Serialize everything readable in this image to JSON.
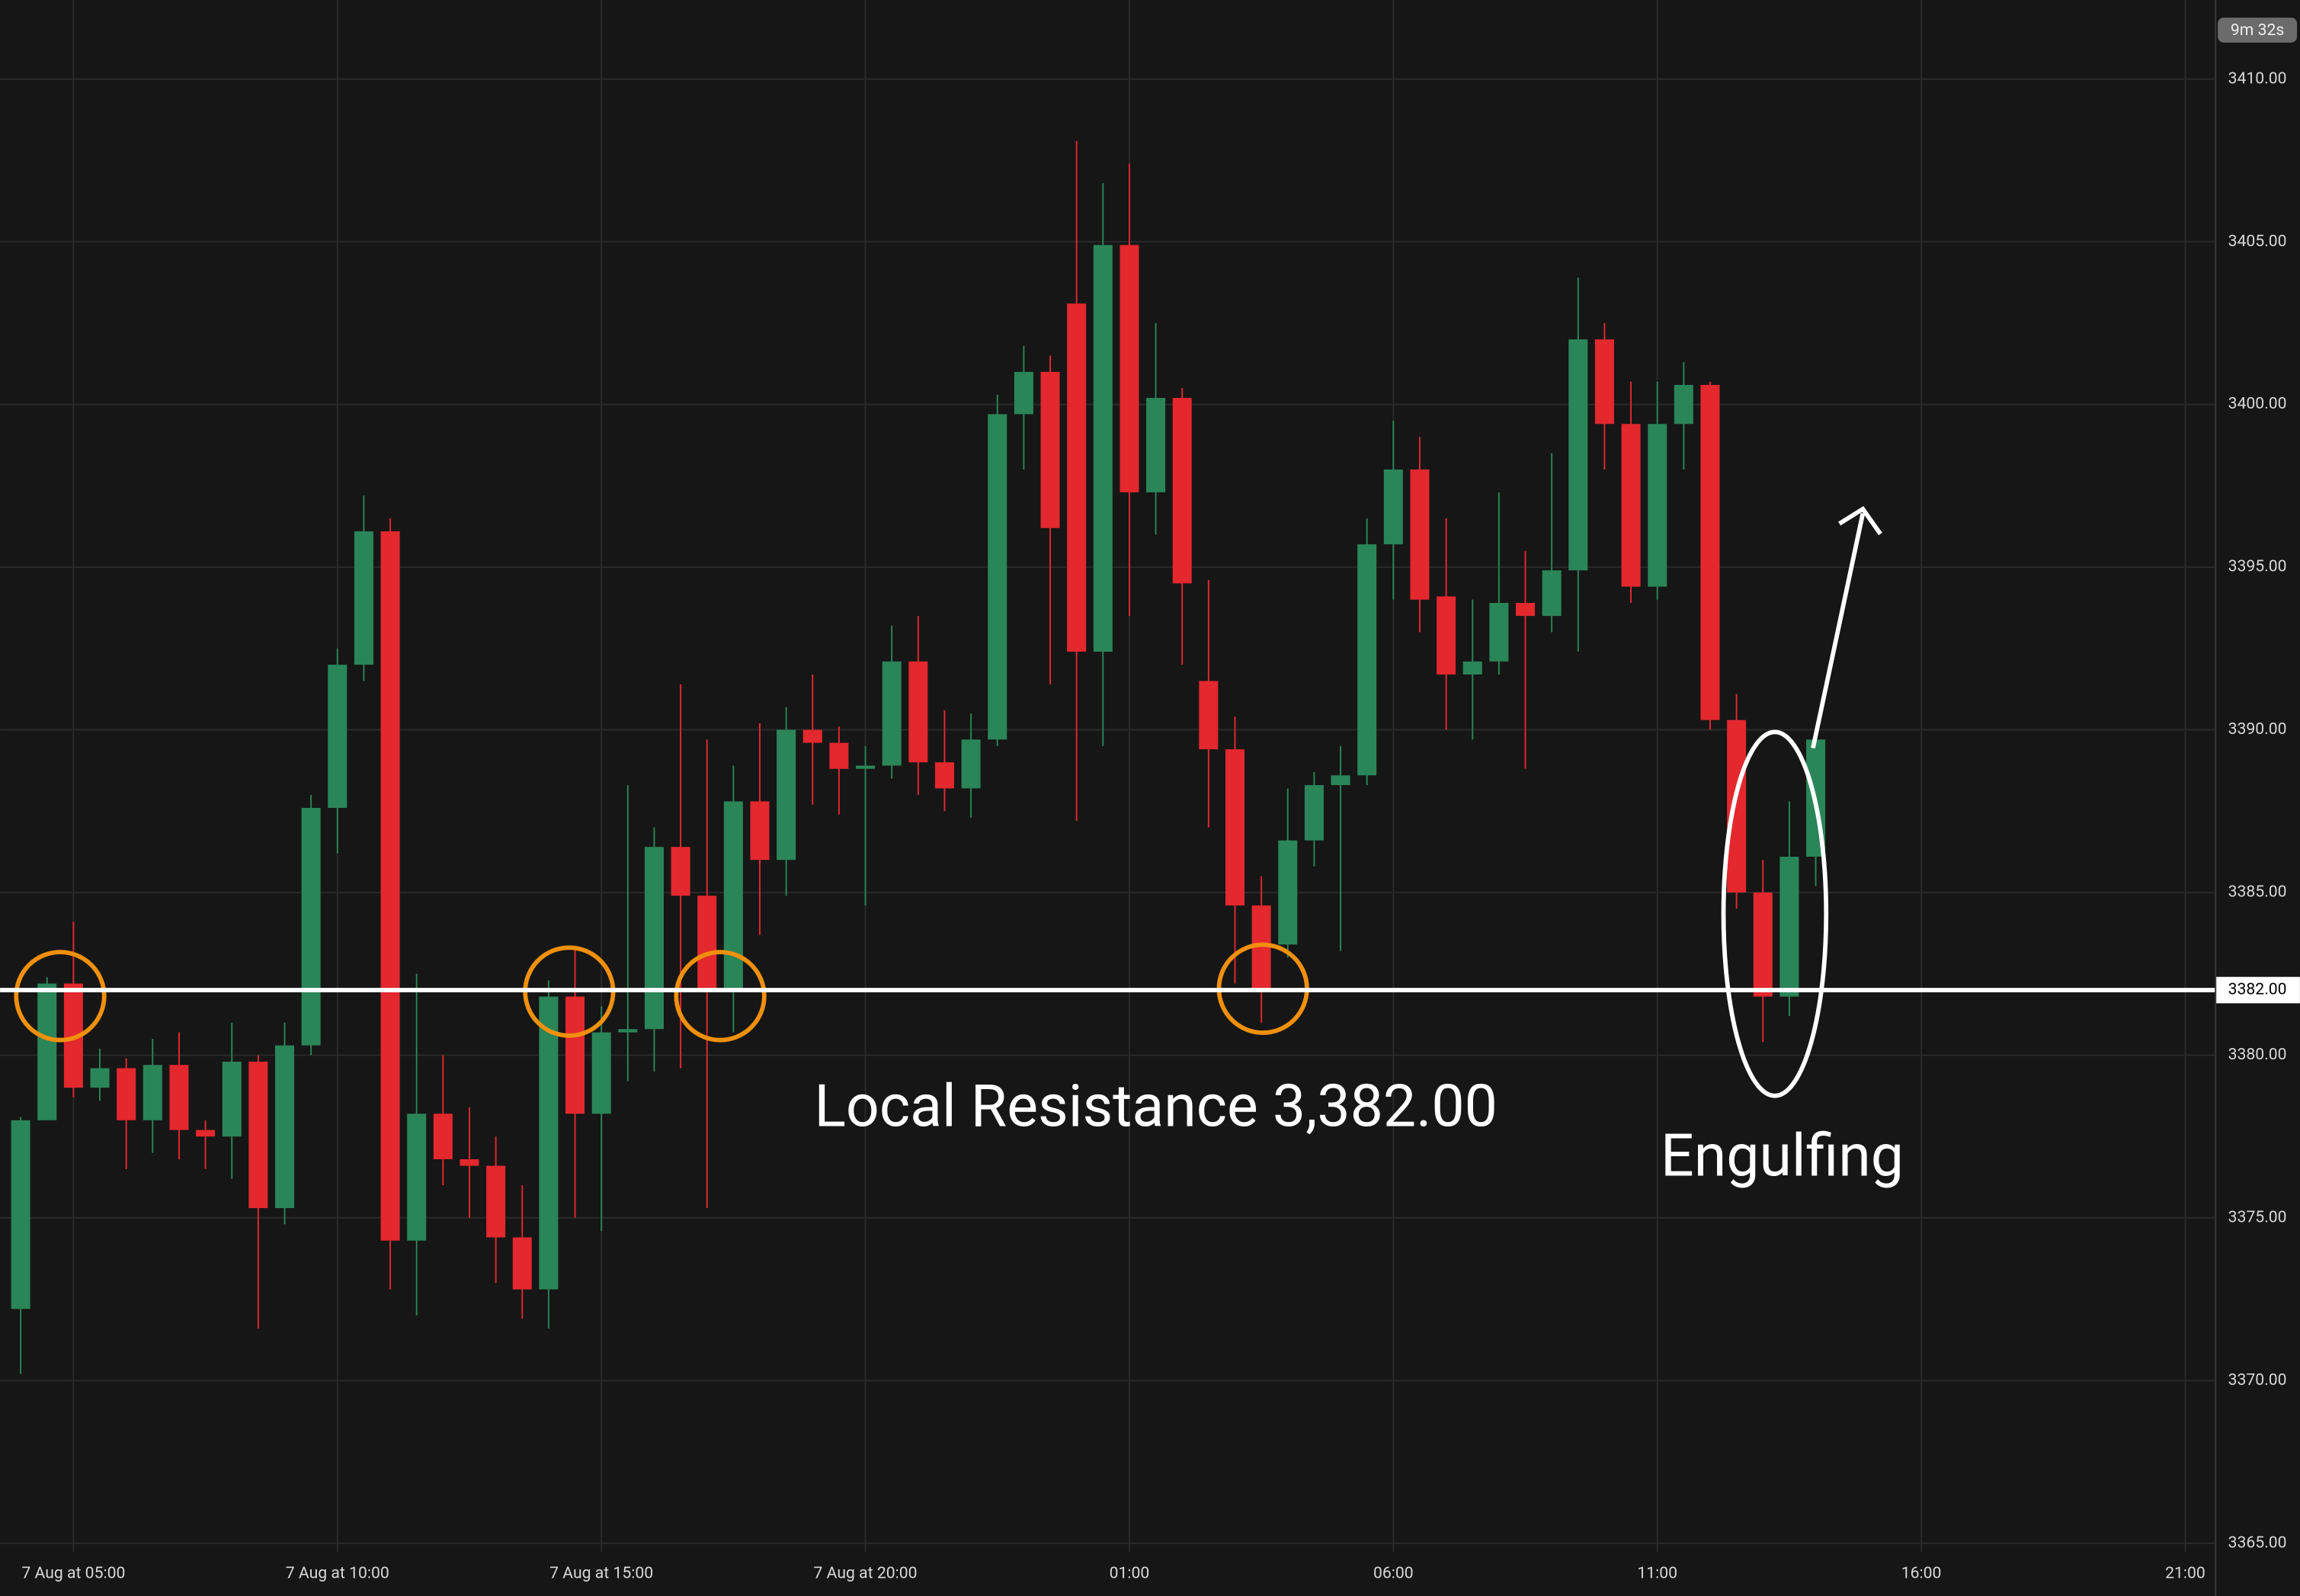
{
  "chart_data": {
    "type": "candlestick",
    "x": [
      4,
      4.5,
      5,
      5.5,
      6,
      6.5,
      7,
      7.5,
      8,
      8.5,
      9,
      9.5,
      10,
      10.5,
      11,
      11.5,
      12,
      12.5,
      13,
      13.5,
      14,
      14.5,
      15,
      15.5,
      16,
      16.5,
      17,
      17.5,
      18,
      18.5,
      19,
      19.5,
      20,
      20.5,
      21,
      21.5,
      22,
      22.5,
      23,
      23.5,
      24,
      24.5,
      25,
      25.5,
      26,
      26.5,
      27,
      27.5,
      28,
      28.5,
      29,
      29.5,
      30,
      30.5,
      31,
      31.5,
      32,
      32.5,
      33,
      33.5,
      34,
      34.5,
      35,
      35.5,
      36,
      36.5,
      37,
      37.5,
      38
    ],
    "open": [
      3372.2,
      3378.0,
      3382.2,
      3379.0,
      3379.6,
      3378.0,
      3379.7,
      3377.7,
      3377.5,
      3379.8,
      3375.3,
      3380.3,
      3387.6,
      3392.0,
      3396.1,
      3374.3,
      3378.2,
      3376.8,
      3376.6,
      3374.4,
      3372.8,
      3381.8,
      3378.2,
      3380.7,
      3380.8,
      3386.4,
      3384.9,
      3382.0,
      3387.8,
      3386.0,
      3390.0,
      3389.6,
      3388.8,
      3388.9,
      3392.1,
      3389.0,
      3388.2,
      3389.7,
      3399.7,
      3401.0,
      3403.1,
      3392.4,
      3404.9,
      3397.3,
      3400.2,
      3391.5,
      3389.4,
      3384.6,
      3383.4,
      3386.6,
      3388.3,
      3388.6,
      3395.7,
      3398.0,
      3394.1,
      3391.7,
      3392.1,
      3393.9,
      3393.5,
      3394.9,
      3402.0,
      3399.4,
      3394.4,
      3399.4,
      3400.6,
      3390.3,
      3385.0,
      3381.8,
      3386.1
    ],
    "high": [
      3378.1,
      3382.4,
      3384.1,
      3380.2,
      3379.9,
      3380.5,
      3380.7,
      3378.0,
      3381.0,
      3380.0,
      3381.0,
      3388.0,
      3392.5,
      3397.2,
      3396.5,
      3382.5,
      3380.0,
      3378.4,
      3377.5,
      3376.0,
      3382.3,
      3383.3,
      3381.5,
      3388.3,
      3387.0,
      3391.4,
      3389.7,
      3388.9,
      3390.2,
      3390.7,
      3391.7,
      3390.1,
      3389.5,
      3393.2,
      3393.5,
      3390.6,
      3390.5,
      3400.3,
      3401.8,
      3401.5,
      3408.1,
      3406.8,
      3407.4,
      3402.5,
      3400.5,
      3394.6,
      3390.4,
      3385.5,
      3388.2,
      3388.7,
      3389.5,
      3396.5,
      3399.5,
      3399.0,
      3396.5,
      3394.0,
      3397.3,
      3395.5,
      3398.5,
      3403.9,
      3402.5,
      3400.7,
      3400.7,
      3401.3,
      3400.7,
      3391.1,
      3386.0,
      3387.8,
      3390.0
    ],
    "low": [
      3370.2,
      3378.0,
      3378.7,
      3378.6,
      3376.5,
      3377.0,
      3376.8,
      3376.5,
      3376.2,
      3371.6,
      3374.8,
      3380.0,
      3386.2,
      3391.5,
      3372.8,
      3372.0,
      3376.0,
      3375.0,
      3373.0,
      3371.9,
      3371.6,
      3375.0,
      3374.6,
      3379.2,
      3379.5,
      3379.6,
      3375.3,
      3380.7,
      3383.7,
      3384.9,
      3387.7,
      3387.4,
      3384.6,
      3388.5,
      3388.0,
      3387.5,
      3387.3,
      3389.5,
      3398.0,
      3391.4,
      3387.2,
      3389.5,
      3393.5,
      3396.0,
      3392.0,
      3387.0,
      3382.2,
      3381.0,
      3383.0,
      3385.8,
      3383.2,
      3388.3,
      3394.0,
      3393.0,
      3390.0,
      3389.7,
      3391.7,
      3388.8,
      3393.0,
      3392.4,
      3398.0,
      3393.9,
      3394.0,
      3398.0,
      3390.0,
      3384.5,
      3380.4,
      3381.2,
      3385.2
    ],
    "close": [
      3378.0,
      3382.2,
      3379.0,
      3379.6,
      3378.0,
      3379.7,
      3377.7,
      3377.5,
      3379.8,
      3375.3,
      3380.3,
      3387.6,
      3392.0,
      3396.1,
      3374.3,
      3378.2,
      3376.8,
      3376.6,
      3374.4,
      3372.8,
      3381.8,
      3378.2,
      3380.7,
      3380.8,
      3386.4,
      3384.9,
      3382.0,
      3387.8,
      3386.0,
      3390.0,
      3389.6,
      3388.8,
      3388.9,
      3392.1,
      3389.0,
      3388.2,
      3389.7,
      3399.7,
      3401.0,
      3396.2,
      3392.4,
      3404.9,
      3397.3,
      3400.2,
      3394.5,
      3389.4,
      3384.6,
      3382.0,
      3386.6,
      3388.3,
      3388.6,
      3395.7,
      3398.0,
      3394.0,
      3391.7,
      3392.1,
      3393.9,
      3393.5,
      3394.9,
      3402.0,
      3399.4,
      3394.4,
      3399.4,
      3400.6,
      3390.3,
      3385.0,
      3381.8,
      3386.1,
      3389.7
    ],
    "up_color": "#2a8558",
    "down_color": "#e3282e",
    "xlim": [
      3.61,
      45.56
    ],
    "xticks": [
      {
        "value": 5,
        "label": "7 Aug at 05:00"
      },
      {
        "value": 10,
        "label": "7 Aug at 10:00"
      },
      {
        "value": 15,
        "label": "7 Aug at 15:00"
      },
      {
        "value": 20,
        "label": "7 Aug at 20:00"
      },
      {
        "value": 25,
        "label": "01:00"
      },
      {
        "value": 30,
        "label": "06:00"
      },
      {
        "value": 35,
        "label": "11:00"
      },
      {
        "value": 40,
        "label": "16:00"
      },
      {
        "value": 45,
        "label": "21:00"
      }
    ],
    "ylim": [
      3364.73,
      3412.43
    ],
    "yticks": [
      {
        "value": 3365,
        "label": "3365.00"
      },
      {
        "value": 3370,
        "label": "3370.00"
      },
      {
        "value": 3375,
        "label": "3375.00"
      },
      {
        "value": 3380,
        "label": "3380.00"
      },
      {
        "value": 3385,
        "label": "3385.00"
      },
      {
        "value": 3390,
        "label": "3390.00"
      },
      {
        "value": 3395,
        "label": "3395.00"
      },
      {
        "value": 3400,
        "label": "3400.00"
      },
      {
        "value": 3405,
        "label": "3405.00"
      },
      {
        "value": 3410,
        "label": "3410.00"
      }
    ],
    "grid": true,
    "hline": {
      "value": 3382,
      "label": "3382.00"
    },
    "annotations": [
      "Local Resistance 3,382.00",
      "Engulfing"
    ],
    "countdown": "9m 32s"
  }
}
